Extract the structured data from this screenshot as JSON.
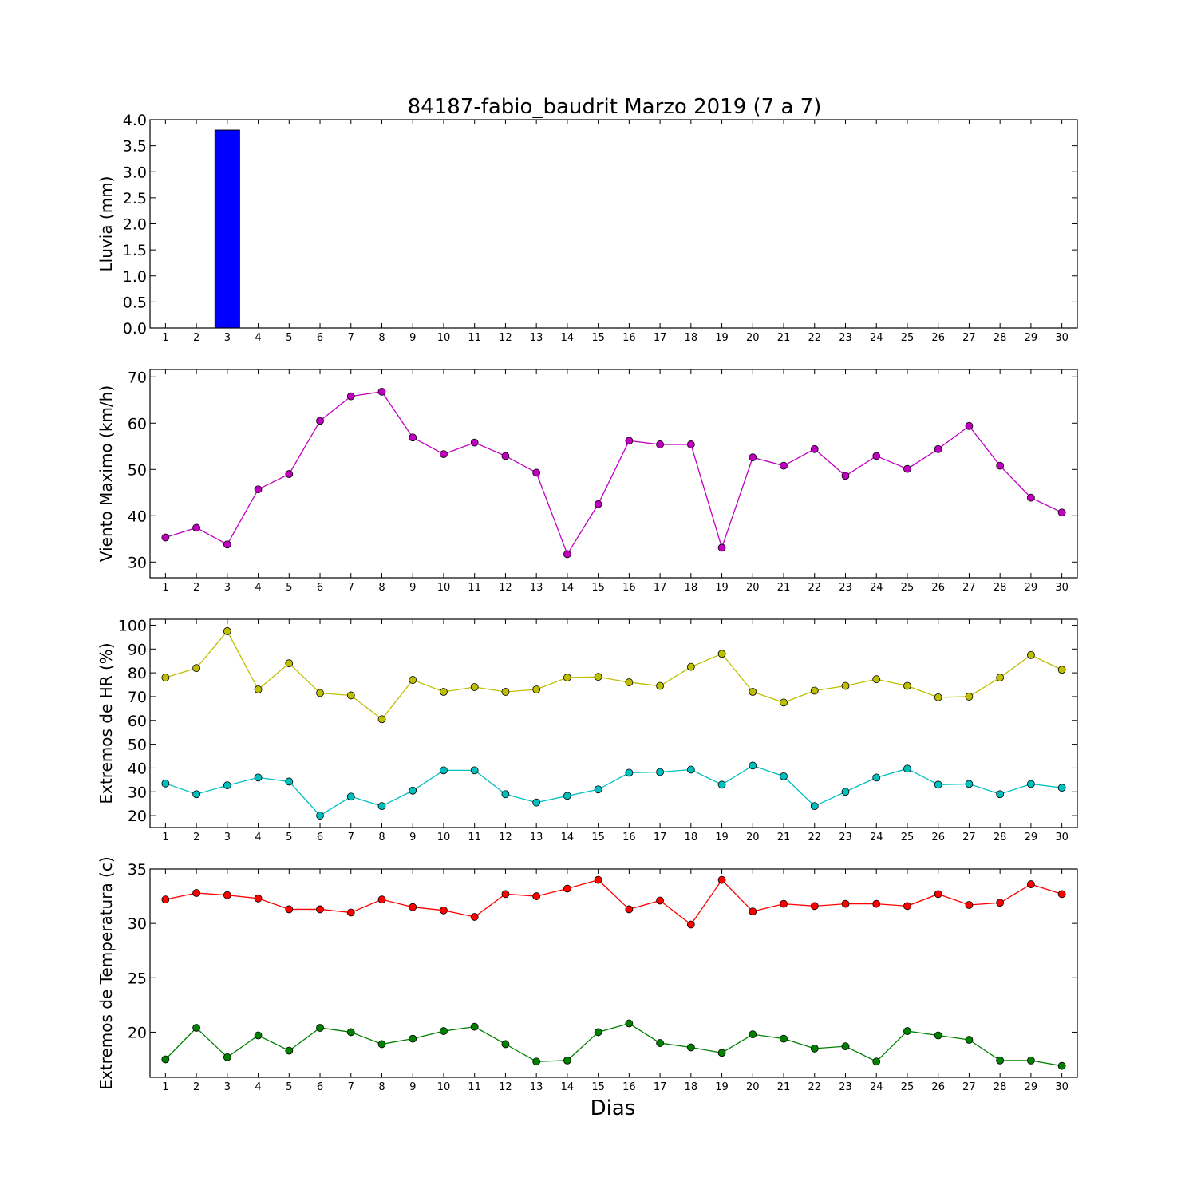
{
  "chart_data": [
    {
      "type": "bar",
      "title": "84187-fabio_baudrit Marzo 2019  (7 a 7)",
      "ylabel": "Lluvia (mm)",
      "xlabel": "",
      "ylim": [
        0,
        4
      ],
      "xlim": [
        0.5,
        30.5
      ],
      "yticks": [
        "0.0",
        "0.5",
        "1.0",
        "1.5",
        "2.0",
        "2.5",
        "3.0",
        "3.5",
        "4.0"
      ],
      "x": [
        1,
        2,
        3,
        4,
        5,
        6,
        7,
        8,
        9,
        10,
        11,
        12,
        13,
        14,
        15,
        16,
        17,
        18,
        19,
        20,
        21,
        22,
        23,
        24,
        25,
        26,
        27,
        28,
        29,
        30
      ],
      "series": [
        {
          "color": "#0000ff",
          "values": [
            0,
            0,
            3.8,
            0,
            0,
            0,
            0,
            0,
            0,
            0,
            0,
            0,
            0,
            0,
            0,
            0,
            0,
            0,
            0,
            0,
            0,
            0,
            0,
            0,
            0,
            0,
            0,
            0,
            0,
            0
          ]
        }
      ]
    },
    {
      "type": "line",
      "title": "",
      "ylabel": "Viento Maximo (km/h)",
      "xlabel": "",
      "ylim": [
        26.6,
        71.6
      ],
      "xlim": [
        0.5,
        30.5
      ],
      "yticks": [
        "30",
        "40",
        "50",
        "60",
        "70"
      ],
      "x": [
        1,
        2,
        3,
        4,
        5,
        6,
        7,
        8,
        9,
        10,
        11,
        12,
        13,
        14,
        15,
        16,
        17,
        18,
        19,
        20,
        21,
        22,
        23,
        24,
        25,
        26,
        27,
        28,
        29,
        30
      ],
      "series": [
        {
          "color": "#bf00bf",
          "values": [
            35.3,
            37.4,
            33.8,
            45.7,
            49.0,
            60.5,
            65.8,
            66.8,
            56.9,
            53.3,
            55.8,
            52.9,
            49.3,
            31.7,
            42.5,
            56.2,
            55.4,
            55.4,
            33.1,
            52.6,
            50.8,
            54.4,
            48.6,
            52.9,
            50.1,
            54.4,
            59.4,
            50.8,
            43.9,
            40.7
          ]
        }
      ]
    },
    {
      "type": "line",
      "title": "",
      "ylabel": "Extremos de HR (%)",
      "xlabel": "",
      "ylim": [
        15,
        102.5
      ],
      "xlim": [
        0.5,
        30.5
      ],
      "yticks": [
        "20",
        "30",
        "40",
        "50",
        "60",
        "70",
        "80",
        "90",
        "100"
      ],
      "x": [
        1,
        2,
        3,
        4,
        5,
        6,
        7,
        8,
        9,
        10,
        11,
        12,
        13,
        14,
        15,
        16,
        17,
        18,
        19,
        20,
        21,
        22,
        23,
        24,
        25,
        26,
        27,
        28,
        29,
        30
      ],
      "series": [
        {
          "color": "#bfbf00",
          "values": [
            78,
            82,
            97.5,
            73,
            84,
            71.5,
            70.5,
            60.5,
            77,
            72,
            74,
            72,
            73,
            78,
            78.3,
            76,
            74.5,
            82.5,
            88,
            72,
            67.5,
            72.5,
            74.5,
            77.3,
            74.5,
            69.7,
            70,
            78,
            87.5,
            81.3
          ]
        },
        {
          "color": "#00bfbf",
          "values": [
            33.5,
            29,
            32.7,
            36,
            34.3,
            20,
            28,
            24,
            30.5,
            39,
            39,
            29,
            25.5,
            28.3,
            31,
            38,
            38.3,
            39.3,
            33,
            41,
            36.5,
            24,
            30,
            36,
            39.7,
            33,
            33.3,
            29,
            33.3,
            31.7
          ]
        }
      ]
    },
    {
      "type": "line",
      "title": "",
      "ylabel": "Extremos de Temperatura (c)",
      "xlabel": "Dias",
      "ylim": [
        15.85,
        35.0
      ],
      "xlim": [
        0.5,
        30.5
      ],
      "yticks": [
        "20",
        "25",
        "30",
        "35"
      ],
      "x": [
        1,
        2,
        3,
        4,
        5,
        6,
        7,
        8,
        9,
        10,
        11,
        12,
        13,
        14,
        15,
        16,
        17,
        18,
        19,
        20,
        21,
        22,
        23,
        24,
        25,
        26,
        27,
        28,
        29,
        30
      ],
      "series": [
        {
          "color": "#ff0000",
          "values": [
            32.2,
            32.8,
            32.6,
            32.3,
            31.3,
            31.3,
            31.0,
            32.2,
            31.5,
            31.2,
            30.6,
            32.7,
            32.5,
            33.2,
            34.0,
            31.3,
            32.1,
            29.9,
            34.0,
            31.1,
            31.8,
            31.6,
            31.8,
            31.8,
            31.6,
            32.7,
            31.7,
            31.9,
            33.6,
            32.7
          ]
        },
        {
          "color": "#008000",
          "values": [
            17.5,
            20.4,
            17.7,
            19.7,
            18.3,
            20.4,
            20.0,
            18.9,
            19.4,
            20.1,
            20.5,
            18.9,
            17.3,
            17.4,
            20.0,
            20.8,
            19.0,
            18.6,
            18.1,
            19.8,
            19.4,
            18.5,
            18.7,
            17.3,
            20.1,
            19.7,
            19.3,
            17.4,
            17.4,
            16.9
          ]
        }
      ]
    }
  ]
}
